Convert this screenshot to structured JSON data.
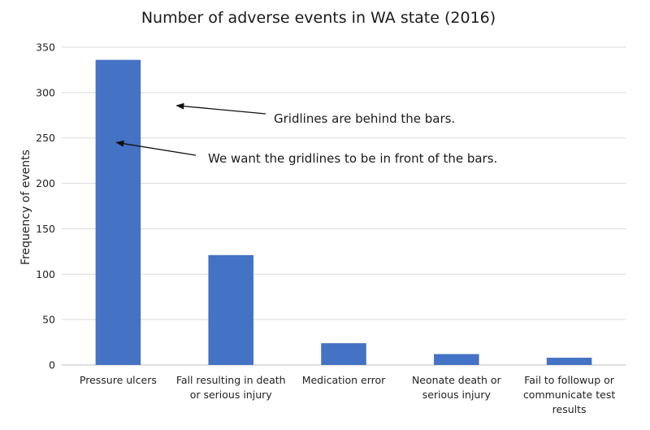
{
  "chart_data": {
    "type": "bar",
    "title": "Number of adverse events in WA state (2016)",
    "xlabel": "",
    "ylabel": "Frequency of events",
    "categories": [
      [
        "Pressure ulcers"
      ],
      [
        "Fall resulting in death",
        "or serious injury"
      ],
      [
        "Medication error"
      ],
      [
        "Neonate death or",
        "serious injury"
      ],
      [
        "Fail to followup or",
        "communicate test",
        "results"
      ]
    ],
    "values": [
      336,
      121,
      24,
      12,
      8
    ],
    "ylim": [
      0,
      350
    ],
    "yticks": [
      0,
      50,
      100,
      150,
      200,
      250,
      300,
      350
    ],
    "grid": true,
    "bar_color": "#4472c4",
    "annotations": [
      {
        "text": "Gridlines are behind the bars.",
        "target_category": 0,
        "target_value": 300
      },
      {
        "text": "We want the gridlines to be in front of the bars.",
        "target_category": 0,
        "target_value": 245
      }
    ]
  }
}
